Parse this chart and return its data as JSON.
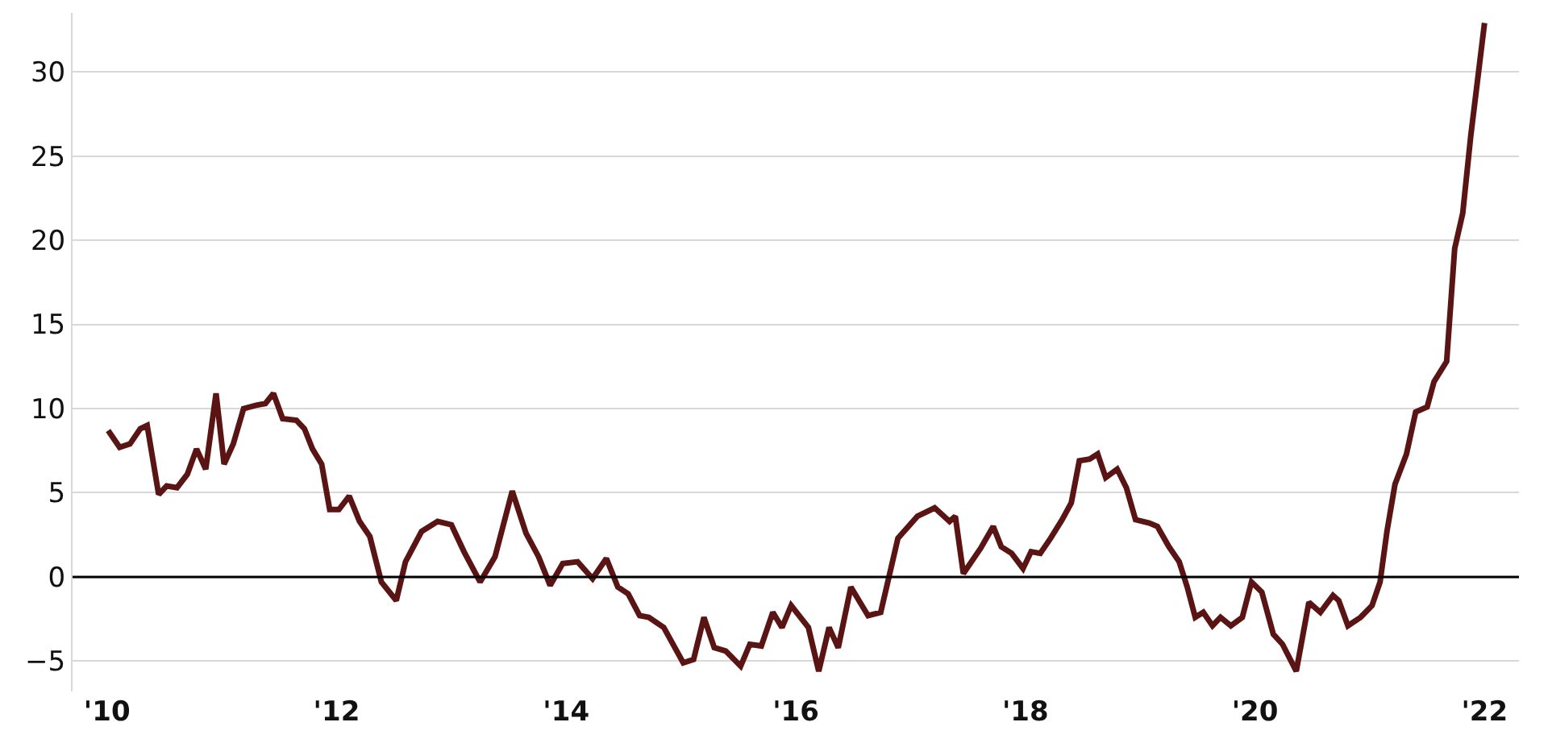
{
  "chart_data": {
    "type": "line",
    "xlim": [
      2009.7,
      2022.3
    ],
    "ylim": [
      -6.8,
      33.5
    ],
    "xticks": [
      {
        "value": 2010,
        "label": "'10"
      },
      {
        "value": 2012,
        "label": "'12"
      },
      {
        "value": 2014,
        "label": "'14"
      },
      {
        "value": 2016,
        "label": "'16"
      },
      {
        "value": 2018,
        "label": "'18"
      },
      {
        "value": 2020,
        "label": "'20"
      },
      {
        "value": 2022,
        "label": "'22"
      }
    ],
    "yticks": [
      -5,
      0,
      5,
      10,
      15,
      20,
      25,
      30
    ],
    "grid": "y",
    "marker": "none",
    "line_style": "solid",
    "ref_lines": [
      {
        "axis": "y",
        "value": 0,
        "label": null,
        "color": "#000000"
      }
    ],
    "series": [
      {
        "color": "#5a1414",
        "x": [
          2010.01,
          2010.11,
          2010.2,
          2010.29,
          2010.35,
          2010.45,
          2010.52,
          2010.61,
          2010.7,
          2010.78,
          2010.86,
          2010.95,
          2011.02,
          2011.1,
          2011.19,
          2011.3,
          2011.38,
          2011.45,
          2011.53,
          2011.65,
          2011.72,
          2011.79,
          2011.87,
          2011.94,
          2012.02,
          2012.11,
          2012.2,
          2012.29,
          2012.39,
          2012.52,
          2012.6,
          2012.74,
          2012.88,
          2013.0,
          2013.11,
          2013.25,
          2013.38,
          2013.53,
          2013.65,
          2013.76,
          2013.86,
          2013.97,
          2014.1,
          2014.23,
          2014.35,
          2014.45,
          2014.54,
          2014.64,
          2014.72,
          2014.85,
          2015.02,
          2015.11,
          2015.2,
          2015.29,
          2015.39,
          2015.52,
          2015.6,
          2015.7,
          2015.8,
          2015.88,
          2015.96,
          2016.11,
          2016.2,
          2016.29,
          2016.37,
          2016.48,
          2016.63,
          2016.74,
          2016.89,
          2017.06,
          2017.21,
          2017.34,
          2017.39,
          2017.46,
          2017.61,
          2017.72,
          2017.79,
          2017.88,
          2017.98,
          2018.05,
          2018.13,
          2018.22,
          2018.32,
          2018.4,
          2018.47,
          2018.56,
          2018.63,
          2018.7,
          2018.8,
          2018.88,
          2018.96,
          2019.08,
          2019.15,
          2019.25,
          2019.34,
          2019.41,
          2019.48,
          2019.55,
          2019.63,
          2019.7,
          2019.79,
          2019.89,
          2019.97,
          2020.06,
          2020.16,
          2020.24,
          2020.36,
          2020.47,
          2020.57,
          2020.68,
          2020.73,
          2020.81,
          2020.92,
          2021.02,
          2021.09,
          2021.15,
          2021.22,
          2021.32,
          2021.4,
          2021.5,
          2021.56,
          2021.67,
          2021.74,
          2021.81,
          2021.88,
          2022.0
        ],
        "values": [
          8.7,
          7.7,
          7.9,
          8.8,
          9.0,
          4.9,
          5.4,
          5.3,
          6.1,
          7.6,
          6.4,
          10.9,
          6.7,
          7.9,
          10.0,
          10.2,
          10.3,
          10.9,
          9.4,
          9.3,
          8.8,
          7.6,
          6.7,
          4.0,
          4.0,
          4.8,
          3.3,
          2.4,
          -0.3,
          -1.4,
          0.9,
          2.7,
          3.3,
          3.1,
          1.5,
          -0.3,
          1.2,
          5.1,
          2.6,
          1.2,
          -0.5,
          0.8,
          0.9,
          -0.1,
          1.1,
          -0.6,
          -1.0,
          -2.3,
          -2.4,
          -3.0,
          -5.1,
          -4.9,
          -2.4,
          -4.2,
          -4.4,
          -5.3,
          -4.0,
          -4.1,
          -2.1,
          -3.0,
          -1.7,
          -3.0,
          -5.6,
          -3.0,
          -4.2,
          -0.6,
          -2.3,
          -2.1,
          2.3,
          3.6,
          4.1,
          3.3,
          3.6,
          0.2,
          1.7,
          3.0,
          1.8,
          1.4,
          0.5,
          1.5,
          1.4,
          2.3,
          3.4,
          4.4,
          6.9,
          7.0,
          7.3,
          5.9,
          6.4,
          5.3,
          3.4,
          3.2,
          3.0,
          1.8,
          0.9,
          -0.6,
          -2.4,
          -2.1,
          -2.9,
          -2.4,
          -2.9,
          -2.4,
          -0.3,
          -0.9,
          -3.4,
          -4.0,
          -5.6,
          -1.5,
          -2.1,
          -1.1,
          -1.4,
          -2.9,
          -2.4,
          -1.7,
          -0.3,
          2.7,
          5.5,
          7.3,
          9.8,
          10.1,
          11.6,
          12.8,
          19.5,
          21.6,
          26.2,
          32.9
        ]
      }
    ]
  }
}
